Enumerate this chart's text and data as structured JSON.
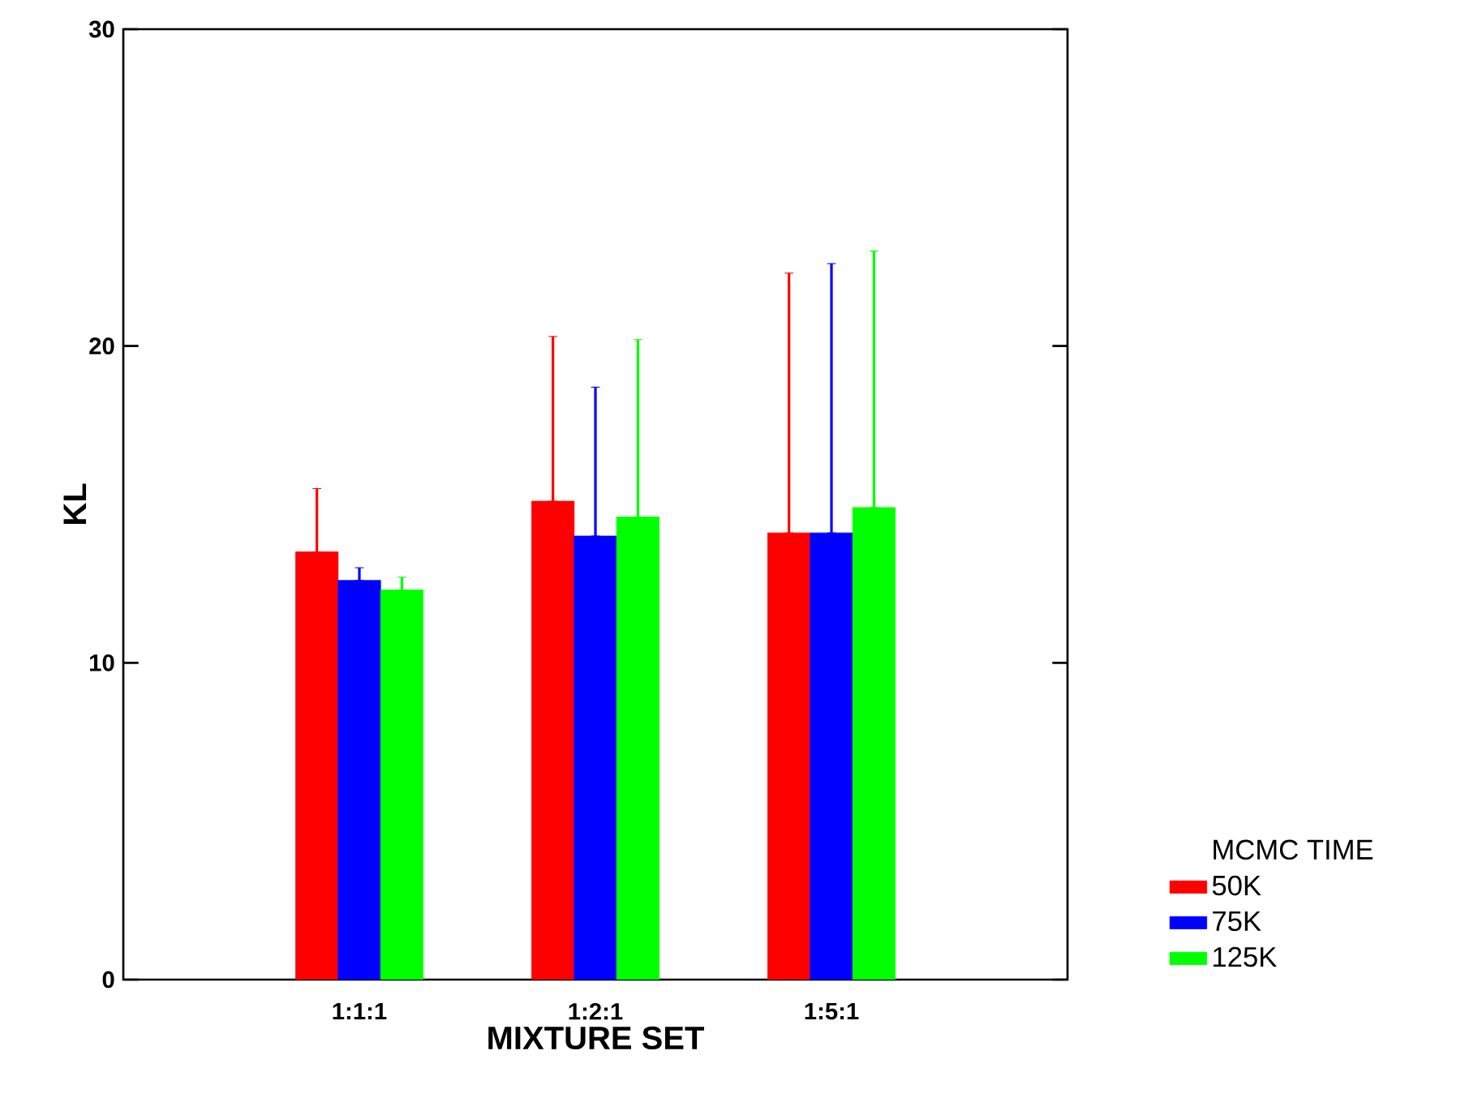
{
  "chart_data": {
    "type": "bar",
    "xlabel": "MIXTURE SET",
    "ylabel": "KL",
    "legend_title": "MCMC TIME",
    "categories": [
      "1:1:1",
      "1:2:1",
      "1:5:1"
    ],
    "ylim": [
      0,
      30
    ],
    "yticks": [
      0,
      10,
      20,
      30
    ],
    "legend": "right",
    "grid": false,
    "series": [
      {
        "name": "50K",
        "color": "#ff0000",
        "values": [
          13.5,
          15.1,
          14.1
        ],
        "errors": [
          [
            13.5,
            15.5
          ],
          [
            15.1,
            20.3
          ],
          [
            14.1,
            22.3
          ]
        ]
      },
      {
        "name": "75K",
        "color": "#0000ff",
        "values": [
          12.6,
          14.0,
          14.1
        ],
        "errors": [
          [
            12.6,
            13.0
          ],
          [
            14.0,
            18.7
          ],
          [
            14.1,
            22.6
          ]
        ]
      },
      {
        "name": "125K",
        "color": "#00ff00",
        "values": [
          12.3,
          14.6,
          14.9
        ],
        "errors": [
          [
            12.3,
            12.7
          ],
          [
            14.6,
            20.2
          ],
          [
            14.9,
            23.0
          ]
        ]
      }
    ]
  }
}
